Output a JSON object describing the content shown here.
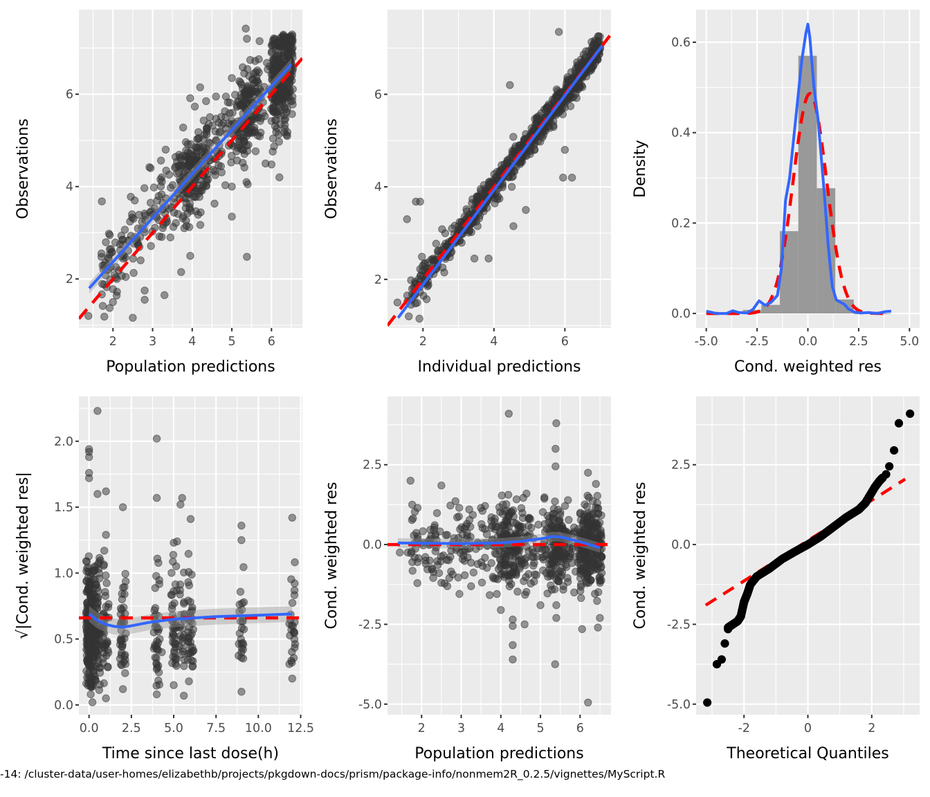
{
  "colors": {
    "panel_bg": "#ebebeb",
    "grid": "#ffffff",
    "point": "#333333",
    "smooth": "#3366ff",
    "reference": "#ff0000",
    "ribbon": "#999999",
    "histogram": "#999999",
    "qq_point": "#000000",
    "tick": "#333333"
  },
  "footer": {
    "text": "-14: /cluster-data/user-homes/elizabethb/projects/pkgdown-docs/prism/package-info/nonmem2R_0.2.5/vignettes/MyScript.R"
  },
  "chart_data": [
    {
      "id": "obs-vs-pred",
      "type": "scatter",
      "title": "",
      "xlabel": "Population predictions",
      "ylabel": "Observations",
      "xlim": [
        1.14,
        6.78
      ],
      "ylim": [
        0.94,
        7.83
      ],
      "xticks": [
        2,
        3,
        4,
        5,
        6
      ],
      "xtick_labels": [
        "2",
        "3",
        "4",
        "5",
        "6"
      ],
      "yticks": [
        2,
        4,
        6
      ],
      "ytick_labels": [
        "2",
        "4",
        "6"
      ],
      "grid": true,
      "reference_line": {
        "type": "identity",
        "style": "dashed",
        "color": "#ff0000"
      },
      "smooth": {
        "method": "linear",
        "x": [
          1.4,
          6.5
        ],
        "y": [
          1.8,
          6.65
        ],
        "ci": 0.12
      },
      "cluster_description": "~900 semi-transparent points; dense near y=x, heavy cluster at x 6-6.5, y 5-7.2",
      "points_sample": [
        [
          1.38,
          1.2
        ],
        [
          1.72,
          3.68
        ],
        [
          1.78,
          2.3
        ],
        [
          1.9,
          2.98
        ],
        [
          1.92,
          2.95
        ],
        [
          1.95,
          2.65
        ],
        [
          2.0,
          1.78
        ],
        [
          2.0,
          1.5
        ],
        [
          2.1,
          2.0
        ],
        [
          2.18,
          2.75
        ],
        [
          2.45,
          3.78
        ],
        [
          2.48,
          3.4
        ],
        [
          2.5,
          1.16
        ],
        [
          2.55,
          3.7
        ],
        [
          2.8,
          1.75
        ],
        [
          2.8,
          1.55
        ],
        [
          2.92,
          4.42
        ],
        [
          2.95,
          4.4
        ],
        [
          2.95,
          3.65
        ],
        [
          3.3,
          1.65
        ],
        [
          3.33,
          4.8
        ],
        [
          3.45,
          2.9
        ],
        [
          3.72,
          2.15
        ],
        [
          3.8,
          3.1
        ],
        [
          3.95,
          2.5
        ],
        [
          4.2,
          6.15
        ],
        [
          4.35,
          5.85
        ],
        [
          4.6,
          5.95
        ],
        [
          4.85,
          5.95
        ],
        [
          5.0,
          6.35
        ],
        [
          5.0,
          3.35
        ],
        [
          5.0,
          4.0
        ],
        [
          5.35,
          7.42
        ],
        [
          5.38,
          7.2
        ],
        [
          5.4,
          4.05
        ],
        [
          5.38,
          2.48
        ],
        [
          5.7,
          7.15
        ],
        [
          5.85,
          4.5
        ],
        [
          6.0,
          4.48
        ],
        [
          6.2,
          4.2
        ],
        [
          6.3,
          7.25
        ]
      ]
    },
    {
      "id": "obs-vs-ipred",
      "type": "scatter",
      "title": "",
      "xlabel": "Individual predictions",
      "ylabel": "Observations",
      "xlim": [
        1.0,
        7.3
      ],
      "ylim": [
        0.95,
        7.83
      ],
      "xticks": [
        2,
        4,
        6
      ],
      "xtick_labels": [
        "2",
        "4",
        "6"
      ],
      "yticks": [
        2,
        4,
        6
      ],
      "ytick_labels": [
        "2",
        "4",
        "6"
      ],
      "grid": true,
      "reference_line": {
        "type": "identity",
        "style": "dashed",
        "color": "#ff0000"
      },
      "smooth": {
        "method": "linear",
        "x": [
          1.3,
          7.05
        ],
        "y": [
          1.17,
          7.05
        ],
        "ci": 0.05
      },
      "cluster_description": "~900 points tightly along identity line",
      "points_sample": [
        [
          1.28,
          1.5
        ],
        [
          1.55,
          3.3
        ],
        [
          1.6,
          1.2
        ],
        [
          1.8,
          3.68
        ],
        [
          1.92,
          3.68
        ],
        [
          1.9,
          1.15
        ],
        [
          2.6,
          2.15
        ],
        [
          3.45,
          2.45
        ],
        [
          3.85,
          2.45
        ],
        [
          4.45,
          6.2
        ],
        [
          4.55,
          3.15
        ],
        [
          4.9,
          3.5
        ],
        [
          5.95,
          4.2
        ],
        [
          6.0,
          4.8
        ],
        [
          6.2,
          4.2
        ],
        [
          5.83,
          7.35
        ]
      ]
    },
    {
      "id": "cwres-histogram",
      "type": "bar",
      "title": "",
      "xlabel": "Cond. weighted res",
      "ylabel": "Density",
      "xlim": [
        -5.5,
        5.5
      ],
      "ylim": [
        -0.032,
        0.672
      ],
      "xticks": [
        -5,
        -2.5,
        0,
        2.5,
        5
      ],
      "xtick_labels": [
        "-5.0",
        "-2.5",
        "0.0",
        "2.5",
        "5.0"
      ],
      "yticks": [
        0,
        0.2,
        0.4,
        0.6
      ],
      "ytick_labels": [
        "0.0",
        "0.2",
        "0.4",
        "0.6"
      ],
      "grid": true,
      "histogram": {
        "bin_width": 0.91,
        "bins": [
          {
            "x0": -3.2,
            "x1": -2.29,
            "density": 0.008
          },
          {
            "x0": -2.29,
            "x1": -1.38,
            "density": 0.019
          },
          {
            "x0": -1.38,
            "x1": -0.47,
            "density": 0.182
          },
          {
            "x0": -0.47,
            "x1": 0.44,
            "density": 0.57
          },
          {
            "x0": 0.44,
            "x1": 1.35,
            "density": 0.277
          },
          {
            "x0": 1.35,
            "x1": 2.26,
            "density": 0.031
          },
          {
            "x0": 2.26,
            "x1": 3.17,
            "density": 0.0
          },
          {
            "x0": 3.17,
            "x1": 4.08,
            "density": 0.0
          }
        ]
      },
      "density_curve": {
        "name": "kernel density",
        "color": "#3366ff",
        "x": [
          -5.0,
          -4.5,
          -4.0,
          -3.7,
          -3.4,
          -3.0,
          -2.7,
          -2.4,
          -2.1,
          -1.8,
          -1.5,
          -1.3,
          -1.1,
          -0.9,
          -0.6,
          -0.3,
          -0.1,
          0.0,
          0.1,
          0.3,
          0.5,
          0.8,
          1.0,
          1.2,
          1.4,
          1.6,
          1.8,
          2.0,
          2.3,
          2.6,
          3.0,
          3.4,
          3.8,
          4.1
        ],
        "y": [
          0.005,
          0.0,
          0.0,
          0.006,
          0.002,
          0.001,
          0.009,
          0.028,
          0.018,
          0.025,
          0.04,
          0.1,
          0.25,
          0.3,
          0.43,
          0.56,
          0.62,
          0.64,
          0.61,
          0.5,
          0.43,
          0.27,
          0.15,
          0.06,
          0.03,
          0.025,
          0.02,
          0.01,
          0.003,
          0.001,
          0.002,
          0.0,
          0.004,
          0.005
        ]
      },
      "normal_curve": {
        "name": "normal fit",
        "color": "#ff0000",
        "style": "dashed",
        "mean": 0.1,
        "sd": 0.82
      }
    },
    {
      "id": "abs-cwres-vs-time",
      "type": "scatter",
      "title": "",
      "xlabel": "Time since last dose(h)",
      "ylabel": "√|Cond. weighted res|",
      "xlim": [
        -0.6,
        12.6
      ],
      "ylim": [
        -0.074,
        2.34
      ],
      "xticks": [
        0,
        2.5,
        5,
        7.5,
        10,
        12.5
      ],
      "xtick_labels": [
        "0.0",
        "2.5",
        "5.0",
        "7.5",
        "10.0",
        "12.5"
      ],
      "yticks": [
        0,
        0.5,
        1.0,
        1.5,
        2.0
      ],
      "ytick_labels": [
        "0.0",
        "0.5",
        "1.0",
        "1.5",
        "2.0"
      ],
      "grid": true,
      "reference_line": {
        "type": "horizontal",
        "y": 0.66,
        "style": "dashed",
        "color": "#ff0000"
      },
      "smooth": {
        "method": "loess",
        "x": [
          0.0,
          0.5,
          1.0,
          1.5,
          2.0,
          2.5,
          3.5,
          5.0,
          7.5,
          10.0,
          12.0
        ],
        "y": [
          0.69,
          0.64,
          0.61,
          0.595,
          0.59,
          0.6,
          0.625,
          0.65,
          0.67,
          0.68,
          0.69
        ],
        "ci": 0.06
      },
      "time_columns": [
        0,
        0.25,
        0.5,
        1.0,
        2.0,
        4.0,
        5.0,
        5.5,
        6.0,
        9.0,
        12.0
      ],
      "points_sample": [
        [
          0.5,
          2.23
        ],
        [
          4.0,
          2.02
        ],
        [
          0,
          1.94
        ],
        [
          0,
          1.92
        ],
        [
          0,
          1.88
        ],
        [
          0,
          1.76
        ],
        [
          0,
          1.72
        ],
        [
          1.0,
          1.62
        ],
        [
          0.5,
          1.6
        ],
        [
          2.0,
          1.5
        ],
        [
          4.0,
          1.57
        ],
        [
          5.5,
          1.57
        ],
        [
          5.4,
          1.52
        ],
        [
          6.0,
          1.41
        ],
        [
          9.0,
          1.36
        ],
        [
          12.0,
          1.42
        ],
        [
          9.0,
          1.25
        ],
        [
          5.0,
          1.23
        ],
        [
          5.2,
          1.24
        ],
        [
          1.0,
          1.29
        ],
        [
          0.9,
          1.17
        ],
        [
          4.3,
          0.4
        ],
        [
          0.2,
          0.02
        ],
        [
          0.1,
          0.08
        ],
        [
          1.0,
          0.05
        ],
        [
          2.0,
          0.12
        ],
        [
          4.0,
          0.08
        ],
        [
          5.0,
          0.15
        ],
        [
          5.6,
          0.07
        ],
        [
          9.0,
          0.1
        ],
        [
          12.0,
          0.2
        ]
      ]
    },
    {
      "id": "cwres-vs-pred",
      "type": "scatter",
      "title": "",
      "xlabel": "Population predictions",
      "ylabel": "Cond. weighted res",
      "xlim": [
        1.14,
        6.78
      ],
      "ylim": [
        -5.33,
        4.64
      ],
      "xticks": [
        2,
        3,
        4,
        5,
        6
      ],
      "xtick_labels": [
        "2",
        "3",
        "4",
        "5",
        "6"
      ],
      "yticks": [
        2.5,
        0,
        -2.5,
        -5
      ],
      "ytick_labels": [
        "2.5",
        "0.0",
        "-2.5",
        "-5.0"
      ],
      "grid": true,
      "reference_line": {
        "type": "horizontal",
        "y": 0,
        "style": "dashed",
        "color": "#ff0000"
      },
      "smooth": {
        "method": "loess",
        "x": [
          1.4,
          2.0,
          3.0,
          4.0,
          4.5,
          5.0,
          5.3,
          5.5,
          5.8,
          6.1,
          6.5
        ],
        "y": [
          0.05,
          0.04,
          0.03,
          0.05,
          0.1,
          0.18,
          0.25,
          0.24,
          0.15,
          0.05,
          -0.1
        ],
        "ci": 0.15
      },
      "points_sample": [
        [
          4.2,
          4.1
        ],
        [
          5.4,
          3.8
        ],
        [
          5.38,
          3.0
        ],
        [
          5.38,
          2.45
        ],
        [
          6.2,
          2.25
        ],
        [
          1.72,
          2.0
        ],
        [
          2.5,
          1.85
        ],
        [
          6.4,
          1.9
        ],
        [
          1.9,
          1.15
        ],
        [
          2.95,
          1.15
        ],
        [
          1.45,
          -0.25
        ],
        [
          1.65,
          -0.25
        ],
        [
          1.9,
          -0.55
        ],
        [
          2.1,
          -0.5
        ],
        [
          2.5,
          -1.2
        ],
        [
          3.9,
          -1.55
        ],
        [
          4.0,
          -2.05
        ],
        [
          4.3,
          -2.35
        ],
        [
          4.3,
          -2.55
        ],
        [
          4.6,
          -2.5
        ],
        [
          5.0,
          -1.9
        ],
        [
          5.4,
          -1.9
        ],
        [
          5.4,
          -2.3
        ],
        [
          5.85,
          -1.5
        ],
        [
          6.05,
          -2.65
        ],
        [
          6.45,
          -2.6
        ],
        [
          6.5,
          -2.3
        ],
        [
          4.3,
          -3.15
        ],
        [
          4.3,
          -3.6
        ],
        [
          5.37,
          -3.75
        ],
        [
          6.2,
          -4.95
        ]
      ]
    },
    {
      "id": "qq-plot",
      "type": "scatter",
      "title": "",
      "xlabel": "Theoretical Quantiles",
      "ylabel": "Cond. weighted res",
      "xlim": [
        -3.5,
        3.5
      ],
      "ylim": [
        -5.33,
        4.64
      ],
      "xticks": [
        -2,
        0,
        2
      ],
      "xtick_labels": [
        "-2",
        "0",
        "2"
      ],
      "yticks": [
        2.5,
        0,
        -2.5,
        -5
      ],
      "ytick_labels": [
        "2.5",
        "0.0",
        "-2.5",
        "-5.0"
      ],
      "grid": true,
      "reference_line": {
        "type": "qqline",
        "x": [
          -3.2,
          3.05
        ],
        "y": [
          -1.9,
          2.05
        ],
        "style": "dashed",
        "color": "#ff0000"
      },
      "qq_curve": {
        "x": [
          -2.5,
          -2.35,
          -2.2,
          -2.1,
          -2.0,
          -1.9,
          -1.8,
          -1.6,
          -1.2,
          -0.8,
          -0.4,
          0.0,
          0.4,
          0.8,
          1.2,
          1.6,
          1.8,
          1.95,
          2.1,
          2.25,
          2.35
        ],
        "y": [
          -2.6,
          -2.5,
          -2.4,
          -2.25,
          -1.8,
          -1.55,
          -1.25,
          -1.0,
          -0.75,
          -0.45,
          -0.22,
          0.0,
          0.25,
          0.55,
          0.85,
          1.1,
          1.3,
          1.55,
          1.8,
          2.0,
          2.1
        ]
      },
      "outlier_points": [
        [
          -3.15,
          -4.95
        ],
        [
          -2.85,
          -3.75
        ],
        [
          -2.7,
          -3.6
        ],
        [
          -2.6,
          -3.1
        ],
        [
          -2.5,
          -2.65
        ],
        [
          2.45,
          2.2
        ],
        [
          2.55,
          2.45
        ],
        [
          2.7,
          2.95
        ],
        [
          2.85,
          3.8
        ],
        [
          3.2,
          4.1
        ]
      ]
    }
  ]
}
